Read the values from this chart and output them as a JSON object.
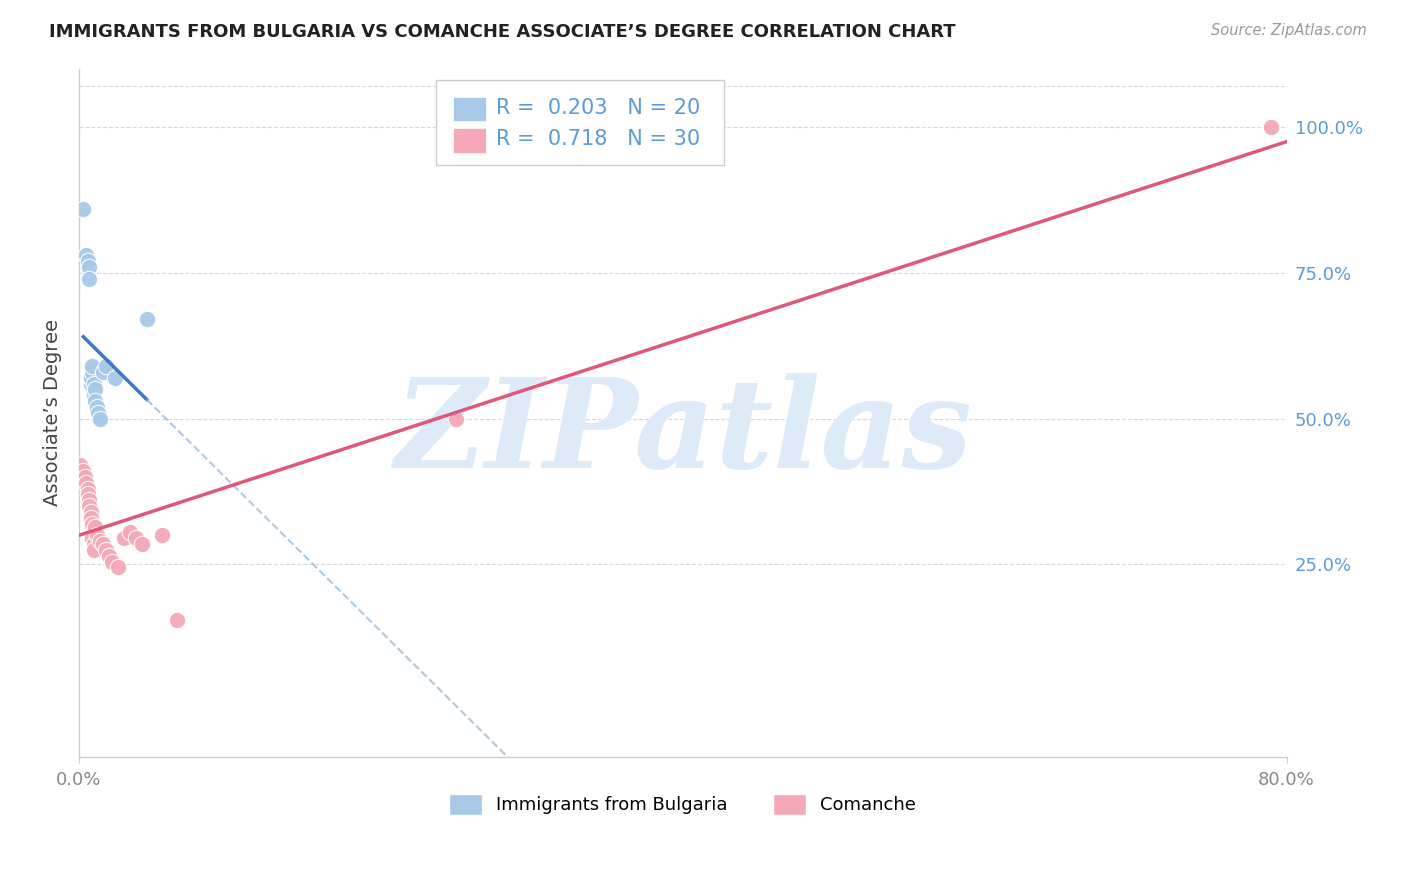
{
  "title": "IMMIGRANTS FROM BULGARIA VS COMANCHE ASSOCIATE’S DEGREE CORRELATION CHART",
  "source": "Source: ZipAtlas.com",
  "ylabel": "Associate’s Degree",
  "legend_blue_r": "0.203",
  "legend_blue_n": "20",
  "legend_pink_r": "0.718",
  "legend_pink_n": "30",
  "xlim": [
    0.0,
    0.8
  ],
  "ylim": [
    -0.08,
    1.1
  ],
  "blue_scatter_x": [
    0.003,
    0.005,
    0.006,
    0.007,
    0.007,
    0.008,
    0.008,
    0.009,
    0.009,
    0.01,
    0.01,
    0.011,
    0.011,
    0.012,
    0.013,
    0.014,
    0.016,
    0.018,
    0.024,
    0.045
  ],
  "blue_scatter_y": [
    0.86,
    0.78,
    0.77,
    0.76,
    0.74,
    0.56,
    0.57,
    0.58,
    0.59,
    0.54,
    0.56,
    0.55,
    0.53,
    0.52,
    0.51,
    0.5,
    0.58,
    0.59,
    0.57,
    0.67
  ],
  "pink_scatter_x": [
    0.001,
    0.003,
    0.004,
    0.005,
    0.006,
    0.006,
    0.007,
    0.007,
    0.008,
    0.008,
    0.009,
    0.009,
    0.01,
    0.01,
    0.011,
    0.012,
    0.014,
    0.016,
    0.018,
    0.02,
    0.022,
    0.026,
    0.03,
    0.034,
    0.038,
    0.042,
    0.055,
    0.065,
    0.25,
    0.79
  ],
  "pink_scatter_y": [
    0.42,
    0.41,
    0.4,
    0.39,
    0.38,
    0.37,
    0.36,
    0.35,
    0.34,
    0.33,
    0.32,
    0.295,
    0.285,
    0.275,
    0.315,
    0.3,
    0.29,
    0.285,
    0.275,
    0.265,
    0.255,
    0.245,
    0.295,
    0.305,
    0.295,
    0.285,
    0.3,
    0.155,
    0.5,
    1.0
  ],
  "blue_color": "#a8c8e8",
  "pink_color": "#f4a8b8",
  "blue_line_color": "#3a78c9",
  "pink_line_color": "#e05878",
  "blue_dash_color": "#90b8d8",
  "watermark_color": "#ddeaf8",
  "background_color": "#ffffff",
  "grid_color": "#d8d8d8",
  "right_tick_color": "#5b9bd5",
  "axis_label_color": "#444444",
  "title_color": "#222222",
  "source_color": "#999999",
  "bottom_tick_color": "#888888"
}
